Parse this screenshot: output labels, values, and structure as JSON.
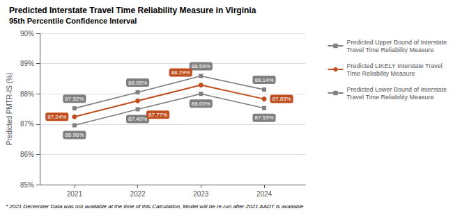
{
  "chart_data": {
    "type": "line",
    "title": "Predicted Interstate Travel Time Reliability Measure in Virginia",
    "subtitle": "95th Percentile Confidence Interval",
    "ylabel": "Predicted PMTR-IS (%)",
    "footnote": "* 2021 December Data was not available at the time of this Calculation, Model will be re-run after 2021 AADT is available",
    "x": [
      2021,
      2022,
      2023,
      2024
    ],
    "xlim": [
      2020.45,
      2024.65
    ],
    "xticks": [
      2021,
      2022,
      2023,
      2024
    ],
    "ylim": [
      85.0,
      90.0
    ],
    "yticks": [
      {
        "value": 85,
        "label": "85%"
      },
      {
        "value": 86,
        "label": "86%"
      },
      {
        "value": 87,
        "label": "87%"
      },
      {
        "value": 88,
        "label": "88%"
      },
      {
        "value": 89,
        "label": "89%"
      },
      {
        "value": 90,
        "label": "90%"
      }
    ],
    "grid": true,
    "legend": "upper right",
    "data_labels": true,
    "series": [
      {
        "name": "Predicted Upper Bound of Interstate\nTravel Time Reliability Measure",
        "color": "#7f7f7f",
        "marker": "square",
        "values": [
          87.52,
          88.05,
          88.59,
          88.14
        ],
        "value_labels": [
          "87.52%",
          "88.05%",
          "88.59%",
          "88.14%"
        ]
      },
      {
        "name": "Predicted LIKELY Interstate Travel\nTime Reliability Measure",
        "color": "#bf4f1f",
        "marker": "circle",
        "values": [
          87.24,
          87.77,
          88.29,
          87.83
        ],
        "value_labels": [
          "87.24%",
          "87.77%",
          "88.29%",
          "87.83%"
        ]
      },
      {
        "name": "Predicted Lower Bound of Interstate\nTravel Time Reliability Measure",
        "color": "#7f7f7f",
        "marker": "square",
        "values": [
          86.96,
          87.49,
          88.0,
          87.53
        ],
        "value_labels": [
          "86.96%",
          "87.49%",
          "88.00%",
          "87.53%"
        ]
      }
    ]
  }
}
